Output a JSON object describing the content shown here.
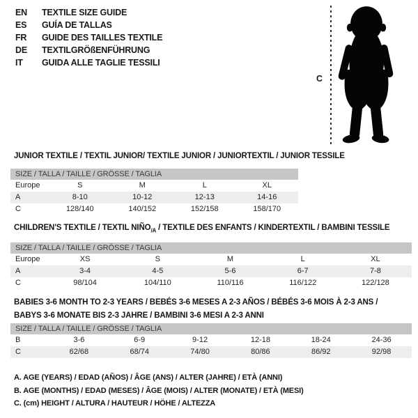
{
  "colors": {
    "text": "#1a1a1a",
    "size_bar_bg": "#c6c6c6",
    "shaded_row_bg": "#ededed",
    "silhouette": "#050505"
  },
  "languages": [
    {
      "code": "EN",
      "title": "TEXTILE SIZE GUIDE"
    },
    {
      "code": "ES",
      "title": "GUÍA DE TALLAS"
    },
    {
      "code": "FR",
      "title": "GUIDE DES TAILLES TEXTILE"
    },
    {
      "code": "DE",
      "title": "TEXTILGRÖßENFÜHRUNG"
    },
    {
      "code": "IT",
      "title": "GUIDA ALLE TAGLIE TESSILI"
    }
  ],
  "figure": {
    "height_label": "C",
    "image": "toddler-silhouette"
  },
  "sections": [
    {
      "id": "junior",
      "heading_lines": [
        [
          {
            "t": "JUNIOR TEXTILE / TEXTIL JUNIOR/ TEXTILE JUNIOR / JUNIORTEXTIL / JUNIOR TESSILE"
          }
        ]
      ],
      "size_header": "SIZE / TALLA / TAILLE / GRÖSSE / TAGLIA",
      "rows": [
        {
          "label": "Europe",
          "shaded": false,
          "values": [
            "S",
            "M",
            "L",
            "XL"
          ]
        },
        {
          "label": "A",
          "shaded": true,
          "values": [
            "8-10",
            "10-12",
            "12-13",
            "14-16"
          ]
        },
        {
          "label": "C",
          "shaded": false,
          "values": [
            "128/140",
            "140/152",
            "152/158",
            "158/170"
          ]
        }
      ]
    },
    {
      "id": "children",
      "heading_lines": [
        [
          {
            "t": "CHILDREN'S TEXTILE / TEXTIL NIÑO"
          },
          {
            "t": "/A",
            "sub": true
          },
          {
            "t": " / TEXTILE DES ENFANTS / KINDERTEXTIL / BAMBINI TESSILE"
          }
        ]
      ],
      "size_header": "SIZE / TALLA / TAILLE / GRÖSSE / TAGLIA",
      "rows": [
        {
          "label": "Europe",
          "shaded": false,
          "values": [
            "XS",
            "S",
            "M",
            "L",
            "XL"
          ]
        },
        {
          "label": "A",
          "shaded": true,
          "values": [
            "3-4",
            "4-5",
            "5-6",
            "6-7",
            "7-8"
          ]
        },
        {
          "label": "C",
          "shaded": false,
          "values": [
            "98/104",
            "104/110",
            "110/116",
            "116/122",
            "122/128"
          ]
        }
      ]
    },
    {
      "id": "babies",
      "heading_lines": [
        [
          {
            "t": "BABIES 3-6 MONTH TO 2-3 YEARS / BEBÉS 3-6 MESES A 2-3 AÑOS / BÉBÉS 3-6 MOIS À 2-3 ANS /"
          }
        ],
        [
          {
            "t": "BABYS 3-6 MONATE BIS 2-3 JAHRE / BAMBINI 3-6 MESI A 2-3 ANNI"
          }
        ]
      ],
      "size_header": "SIZE / TALLA / TAILLE / GRÖSSE / TAGLIA",
      "rows": [
        {
          "label": "B",
          "shaded": false,
          "values": [
            "3-6",
            "6-9",
            "9-12",
            "12-18",
            "18-24",
            "24-36"
          ]
        },
        {
          "label": "C",
          "shaded": true,
          "values": [
            "62/68",
            "68/74",
            "74/80",
            "80/86",
            "86/92",
            "92/98"
          ]
        }
      ]
    }
  ],
  "footnotes": [
    "A. AGE (YEARS) / EDAD (AÑOS) / ÂGE (ANS) / ALTER (JAHRE) / ETÀ (ANNI)",
    "B. AGE (MONTHS) / EDAD (MESES) / ÂGE (MOIS) / ALTER (MONATE) / ETÀ (MESI)",
    "C. (cm) HEIGHT / ALTURA / HAUTEUR / HÖHE / ALTEZZA"
  ]
}
